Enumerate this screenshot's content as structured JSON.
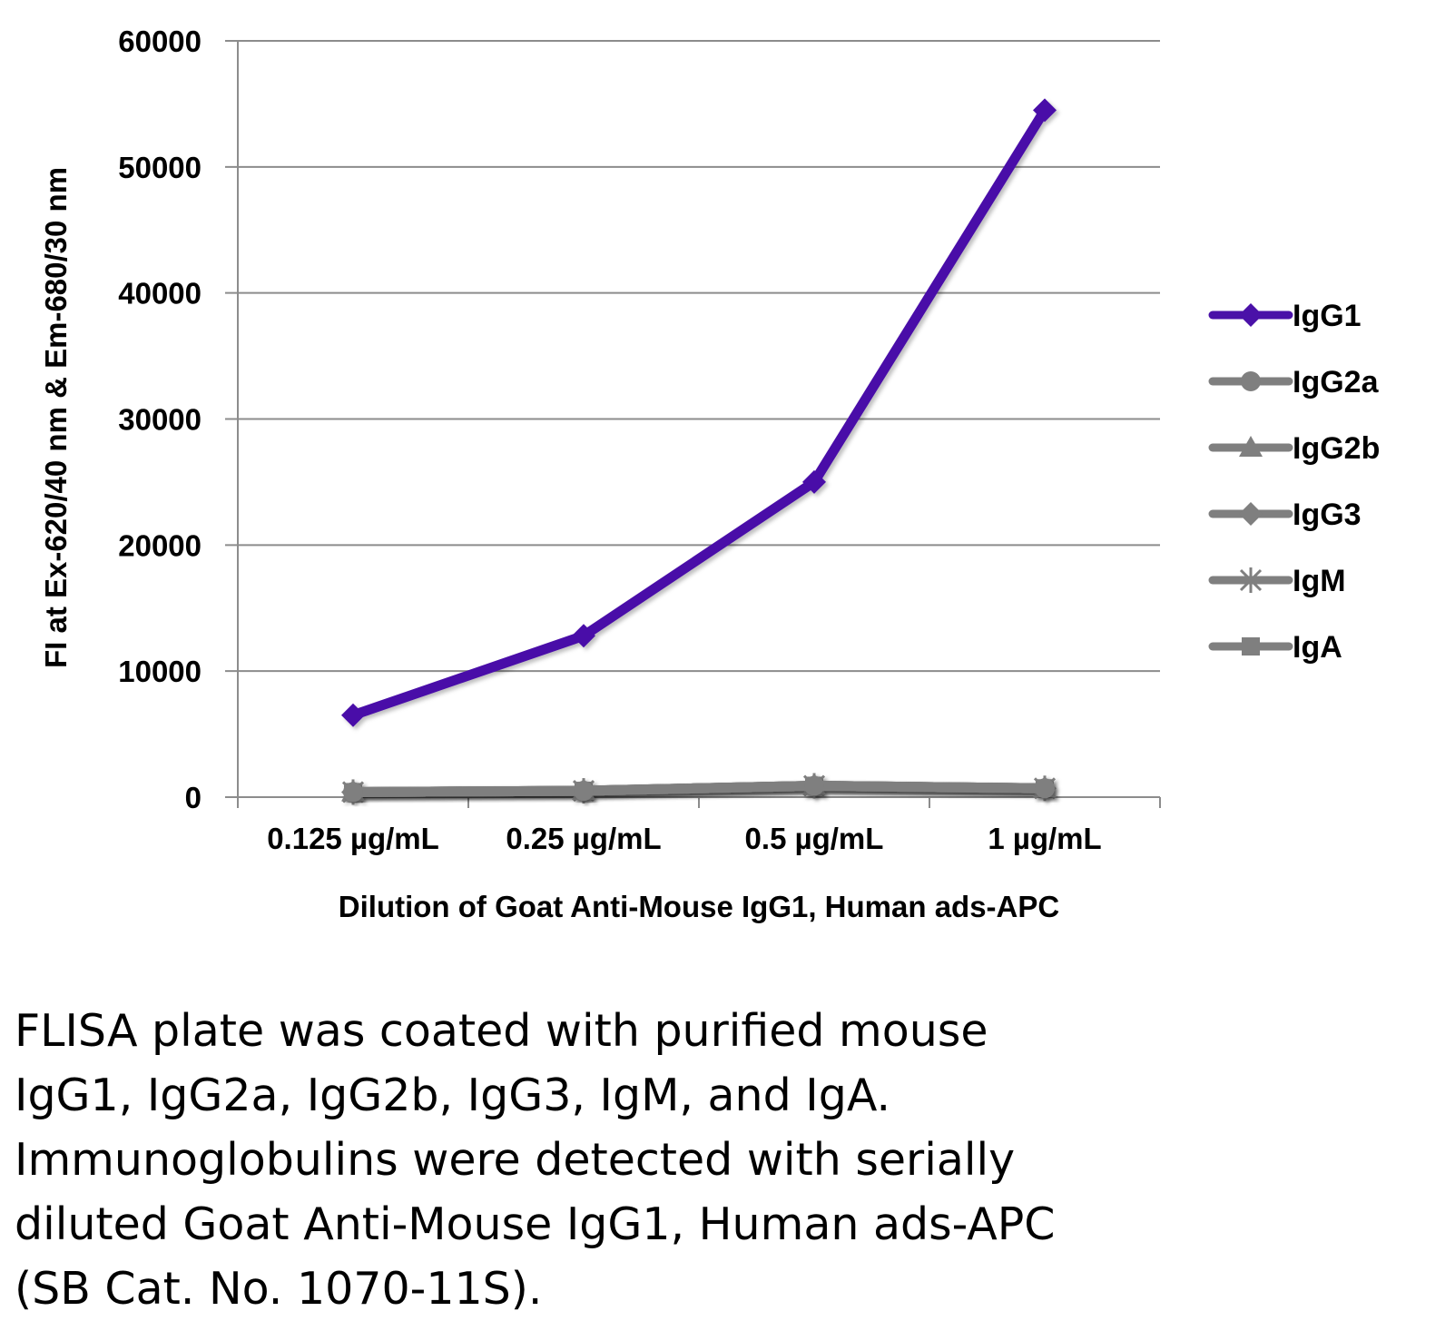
{
  "chart_data": {
    "type": "line",
    "title": "",
    "xlabel": "Dilution of Goat Anti-Mouse IgG1, Human ads-APC",
    "ylabel": "FI at Ex-620/40 nm & Em-680/30 nm",
    "categories": [
      "0.125 µg/mL",
      "0.25 µg/mL",
      "0.5 µg/mL",
      "1 µg/mL"
    ],
    "ylim": [
      0,
      60000
    ],
    "yticks": [
      0,
      10000,
      20000,
      30000,
      40000,
      50000,
      60000
    ],
    "grid": true,
    "legend_position": "right",
    "series": [
      {
        "name": "IgG1",
        "color": "#4a11a8",
        "marker": "diamond",
        "values": [
          6500,
          12800,
          25000,
          54500
        ]
      },
      {
        "name": "IgG2a",
        "color": "#7f7f7f",
        "marker": "circle",
        "values": [
          400,
          500,
          900,
          700
        ]
      },
      {
        "name": "IgG2b",
        "color": "#7f7f7f",
        "marker": "triangle",
        "values": [
          400,
          500,
          900,
          700
        ]
      },
      {
        "name": "IgG3",
        "color": "#7f7f7f",
        "marker": "diamond",
        "values": [
          400,
          500,
          900,
          700
        ]
      },
      {
        "name": "IgM",
        "color": "#7f7f7f",
        "marker": "star",
        "values": [
          400,
          500,
          900,
          700
        ]
      },
      {
        "name": "IgA",
        "color": "#7f7f7f",
        "marker": "square",
        "values": [
          400,
          500,
          900,
          700
        ]
      }
    ]
  },
  "caption": {
    "lines": [
      "FLISA plate was coated with purified mouse",
      "IgG1, IgG2a, IgG2b, IgG3, IgM, and IgA.",
      "Immunoglobulins were detected with serially",
      "diluted Goat Anti-Mouse IgG1, Human ads-APC",
      "(SB Cat. No. 1070-11S)."
    ]
  }
}
